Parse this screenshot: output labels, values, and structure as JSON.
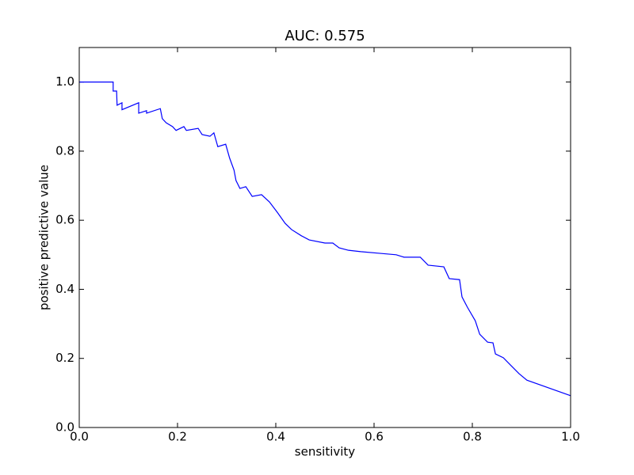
{
  "chart_data": {
    "type": "line",
    "title": "AUC: 0.575",
    "x_label": "sensitivity",
    "y_label": "positive predictive value",
    "x": [
      0,
      0.069,
      0.069,
      0.076,
      0.077,
      0.087,
      0.087,
      0.121,
      0.121,
      0.137,
      0.137,
      0.165,
      0.169,
      0.177,
      0.19,
      0.197,
      0.213,
      0.218,
      0.242,
      0.25,
      0.266,
      0.274,
      0.282,
      0.298,
      0.306,
      0.315,
      0.319,
      0.327,
      0.339,
      0.352,
      0.371,
      0.387,
      0.403,
      0.419,
      0.432,
      0.452,
      0.468,
      0.5,
      0.516,
      0.529,
      0.548,
      0.573,
      0.613,
      0.645,
      0.661,
      0.694,
      0.71,
      0.742,
      0.753,
      0.774,
      0.779,
      0.79,
      0.806,
      0.815,
      0.831,
      0.842,
      0.847,
      0.863,
      0.879,
      0.895,
      0.911,
      1.0
    ],
    "series": [
      {
        "color": "#0000ff",
        "values": [
          1.0,
          1.0,
          0.974,
          0.974,
          0.933,
          0.94,
          0.92,
          0.94,
          0.91,
          0.917,
          0.91,
          0.923,
          0.894,
          0.882,
          0.871,
          0.86,
          0.871,
          0.86,
          0.866,
          0.848,
          0.843,
          0.853,
          0.813,
          0.82,
          0.78,
          0.745,
          0.715,
          0.692,
          0.697,
          0.669,
          0.674,
          0.653,
          0.623,
          0.591,
          0.573,
          0.555,
          0.543,
          0.534,
          0.534,
          0.52,
          0.513,
          0.509,
          0.504,
          0.5,
          0.493,
          0.493,
          0.47,
          0.465,
          0.431,
          0.428,
          0.378,
          0.348,
          0.309,
          0.27,
          0.247,
          0.245,
          0.213,
          0.202,
          0.179,
          0.156,
          0.137,
          0.092
        ]
      }
    ],
    "xlim": [
      0,
      1
    ],
    "ylim": [
      0,
      1.1
    ],
    "xticks": [
      {
        "value": 0,
        "label": "0.0"
      },
      0.2,
      0.4,
      0.6,
      0.8,
      {
        "value": 1,
        "label": "1.0"
      }
    ],
    "yticks": [
      {
        "value": 0,
        "label": "0.0"
      },
      0.2,
      0.4,
      0.6,
      0.8,
      {
        "value": 1,
        "label": "1.0"
      }
    ],
    "grid": false
  }
}
